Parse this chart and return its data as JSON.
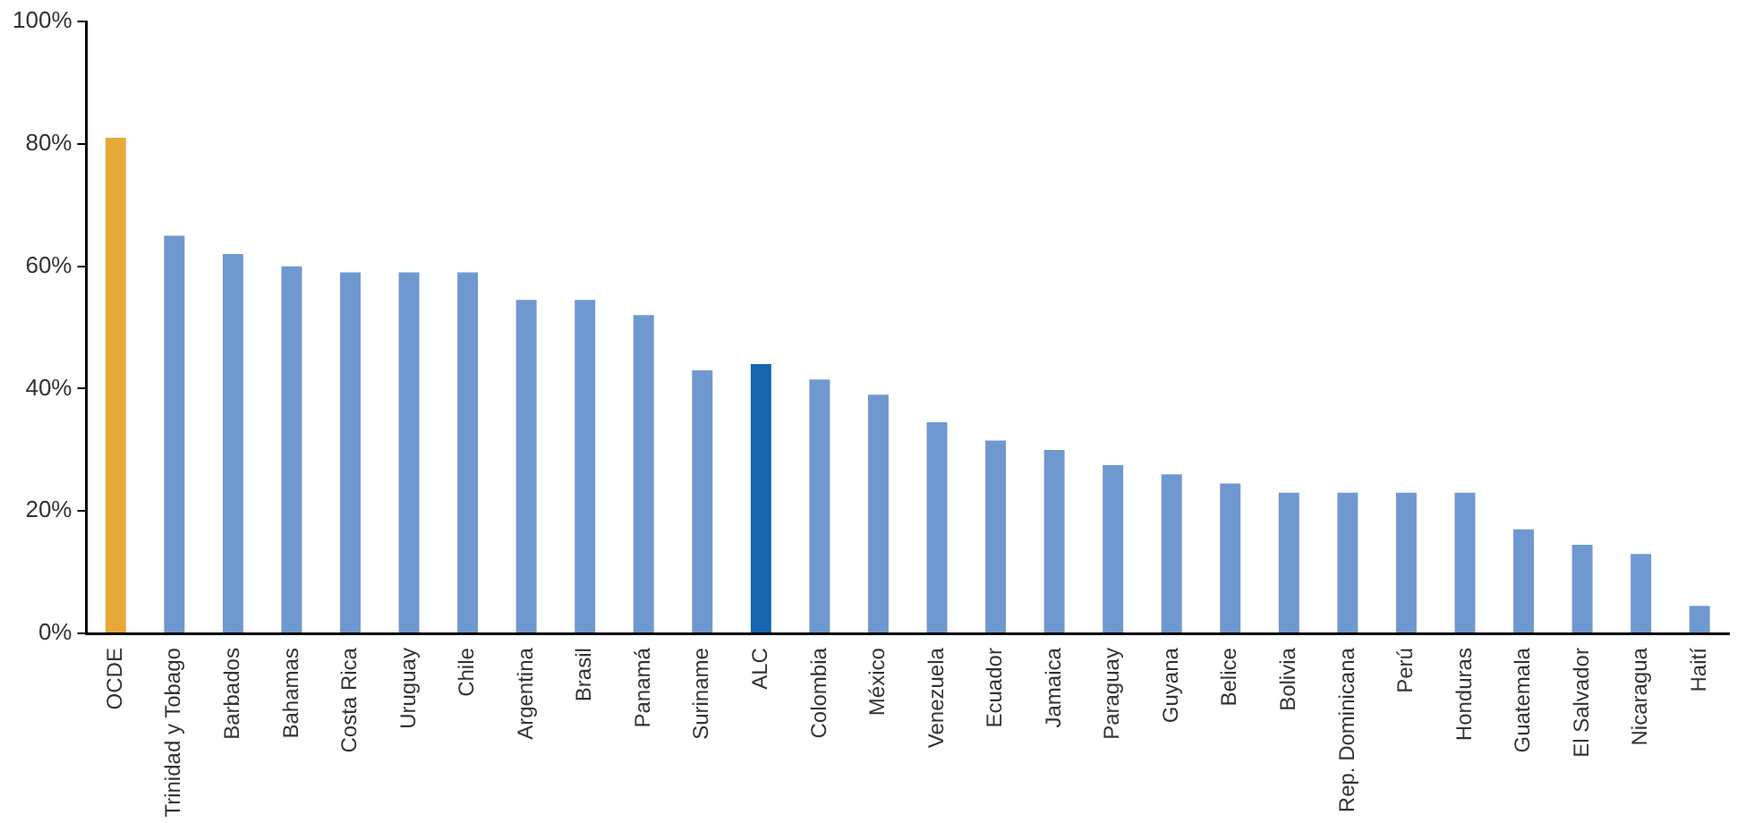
{
  "chart_data": {
    "type": "bar",
    "categories": [
      "OCDE",
      "Trinidad y Tobago",
      "Barbados",
      "Bahamas",
      "Costa Rica",
      "Uruguay",
      "Chile",
      "Argentina",
      "Brasil",
      "Panamá",
      "Suriname",
      "ALC",
      "Colombia",
      "México",
      "Venezuela",
      "Ecuador",
      "Jamaica",
      "Paraguay",
      "Guyana",
      "Belice",
      "Bolivia",
      "Rep. Dominicana",
      "Perú",
      "Honduras",
      "Guatemala",
      "El Salvador",
      "Nicaragua",
      "Haití"
    ],
    "values": [
      81,
      65,
      62,
      60,
      59,
      59,
      59,
      54.5,
      54.5,
      52,
      43,
      44,
      41.5,
      39,
      34.5,
      31.5,
      30,
      27.5,
      26,
      24.5,
      23,
      23,
      23,
      23,
      17,
      14.5,
      13,
      4.5
    ],
    "colors": [
      "#e8a838",
      "#7098d0",
      "#7098d0",
      "#7098d0",
      "#7098d0",
      "#7098d0",
      "#7098d0",
      "#7098d0",
      "#7098d0",
      "#7098d0",
      "#7098d0",
      "#1565b0",
      "#7098d0",
      "#7098d0",
      "#7098d0",
      "#7098d0",
      "#7098d0",
      "#7098d0",
      "#7098d0",
      "#7098d0",
      "#7098d0",
      "#7098d0",
      "#7098d0",
      "#7098d0",
      "#7098d0",
      "#7098d0",
      "#7098d0",
      "#7098d0"
    ],
    "ylim": [
      0,
      100
    ],
    "yticks": [
      {
        "value": 0,
        "label": "0%"
      },
      {
        "value": 20,
        "label": "20%"
      },
      {
        "value": 40,
        "label": "40%"
      },
      {
        "value": 60,
        "label": "60%"
      },
      {
        "value": 80,
        "label": "80%"
      },
      {
        "value": 100,
        "label": "100%"
      }
    ],
    "grid": false,
    "legend": false
  }
}
